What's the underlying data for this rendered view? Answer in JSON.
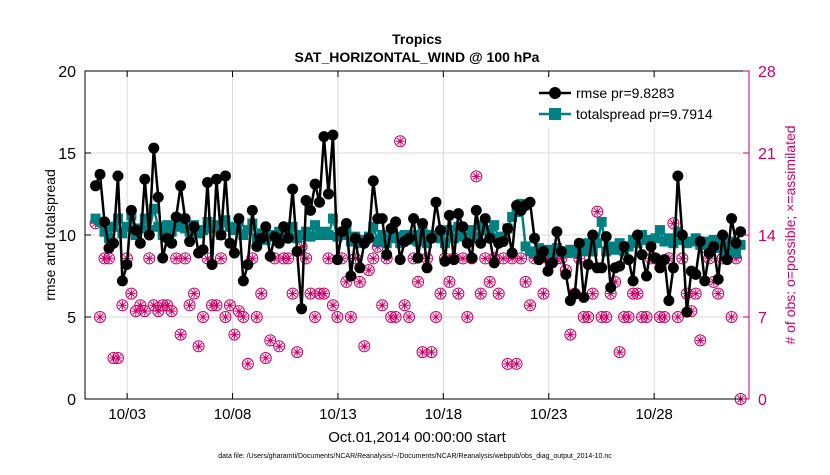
{
  "chart_data": {
    "type": "line",
    "title": "Tropics",
    "subtitle": "SAT_HORIZONTAL_WIND @ 100 hPa",
    "xlabel": "Oct.01,2014 00:00:00 start",
    "ylabel": "rmse and totalspread",
    "ylabel_right": "# of obs: o=possible; ×=assimilated",
    "xlim": [
      1,
      32.5
    ],
    "ylim": [
      0,
      20
    ],
    "ylim_right": [
      0,
      28
    ],
    "x_ticks": [
      3,
      8,
      13,
      18,
      23,
      28
    ],
    "x_tick_labels": [
      "10/03",
      "10/08",
      "10/13",
      "10/18",
      "10/23",
      "10/28"
    ],
    "y_ticks": [
      0,
      5,
      10,
      15,
      20
    ],
    "y_ticks_right": [
      0,
      7,
      14,
      21,
      28
    ],
    "colors": {
      "rmse": "#000000",
      "totalspread": "#008080",
      "obs": "#cc0066",
      "axes": "#000000",
      "grid": "#d9d9d9"
    },
    "legend_position": "top-right",
    "series": [
      {
        "name": "rmse pr=9.8283",
        "values": [
          13.0,
          13.7,
          10.8,
          9.2,
          9.5,
          13.6,
          7.2,
          8.2,
          11.5,
          10.3,
          9.5,
          13.4,
          10.0,
          15.3,
          12.3,
          8.6,
          9.8,
          9.5,
          11.1,
          13.0,
          11.0,
          9.6,
          10.5,
          8.9,
          9.1,
          13.2,
          8.2,
          13.4,
          10.0,
          13.6,
          9.5,
          8.9,
          11.0,
          7.2,
          8.2,
          11.5,
          9.3,
          9.8,
          10.5,
          8.7,
          9.9,
          9.5,
          10.5,
          9.8,
          12.8,
          9.0,
          5.5,
          12.1,
          11.5,
          13.1,
          12.0,
          16.0,
          12.5,
          16.1,
          8.5,
          10.2,
          10.7,
          7.5,
          9.8,
          8.0,
          9.5,
          9.8,
          13.3,
          11.0,
          11.0,
          8.8,
          10.4,
          10.8,
          8.5,
          9.6,
          9.8,
          11.0,
          8.6,
          10.7,
          8.0,
          9.8,
          12.0,
          10.3,
          8.4,
          11.2,
          8.5,
          11.3,
          10.5,
          9.5,
          8.6,
          11.5,
          9.5,
          11.0,
          9.8,
          8.3,
          9.5,
          9.6,
          10.4,
          8.9,
          11.8,
          11.5,
          11.8,
          12.0,
          9.8,
          8.5,
          9.0,
          7.8,
          8.3,
          10.2,
          9.0,
          7.6,
          6.0,
          6.4,
          9.5,
          6.2,
          8.2,
          10.0,
          8.0,
          8.0,
          9.9,
          6.8,
          8.0,
          8.1,
          9.3,
          8.5,
          7.2,
          10.0,
          8.8,
          7.5,
          9.3,
          8.6,
          8.0,
          8.5,
          6.0,
          8.0,
          13.6,
          10.0,
          5.3,
          7.8,
          7.6,
          9.6,
          7.2,
          8.9,
          9.3,
          7.3,
          10.0,
          8.5,
          11.0,
          9.5,
          10.2
        ]
      },
      {
        "name": "totalspread pr=9.7914",
        "values": [
          11.0,
          10.8,
          10.2,
          9.8,
          10.5,
          11.0,
          10.1,
          10.5,
          11.2,
          10.0,
          10.4,
          11.0,
          10.3,
          11.6,
          10.5,
          10.0,
          10.6,
          10.2,
          10.5,
          11.0,
          10.4,
          10.2,
          10.6,
          10.1,
          10.3,
          10.8,
          10.4,
          10.6,
          10.0,
          10.9,
          10.5,
          10.3,
          10.8,
          10.0,
          10.3,
          10.7,
          9.8,
          10.1,
          9.7,
          10.0,
          9.9,
          10.2,
          9.8,
          10.0,
          10.5,
          9.8,
          10.0,
          10.2,
          9.9,
          10.6,
          10.0,
          10.2,
          10.0,
          11.0,
          9.9,
          10.0,
          10.3,
          9.6,
          9.9,
          9.5,
          9.7,
          9.9,
          10.5,
          9.6,
          10.0,
          9.5,
          9.8,
          9.9,
          9.5,
          10.0,
          9.7,
          10.0,
          9.6,
          10.2,
          9.5,
          10.0,
          10.0,
          9.8,
          9.5,
          10.3,
          9.8,
          10.5,
          9.9,
          9.7,
          10.3,
          9.8,
          10.6,
          10.3,
          10.2,
          10.6,
          9.8,
          9.9,
          10.4,
          11.1,
          11.4,
          11.9,
          9.3,
          9.0,
          8.9,
          9.2,
          9.0,
          9.1,
          8.9,
          9.2,
          9.0,
          8.9,
          9.1,
          8.9,
          9.2,
          9.0,
          9.5,
          9.0,
          9.5,
          10.8,
          9.0,
          9.3,
          9.1,
          9.5,
          9.0,
          9.3,
          9.7,
          9.5,
          10.0,
          9.7,
          9.5,
          9.8,
          10.3,
          9.6,
          9.8,
          9.5,
          10.2,
          9.7,
          9.5,
          9.6,
          9.8,
          9.4,
          9.6,
          9.1,
          9.7,
          9.2,
          9.5,
          9.0,
          9.6,
          8.9,
          9.4
        ]
      },
      {
        "name": "obs_possible",
        "axis": "right",
        "marker": "o",
        "values": [
          15.0,
          7.0,
          12.0,
          12.0,
          3.5,
          3.5,
          8.0,
          12.0,
          9.0,
          7.5,
          8.0,
          7.5,
          12.0,
          8.0,
          7.5,
          8.0,
          8.0,
          7.5,
          12.0,
          5.5,
          12.0,
          8.0,
          9.0,
          4.5,
          7.0,
          12.0,
          8.0,
          8.0,
          12.0,
          7.0,
          8.0,
          5.5,
          7.5,
          7.0,
          3.0,
          12.0,
          7.0,
          9.0,
          3.5,
          5.0,
          12.0,
          4.5,
          12.0,
          12.0,
          9.0,
          4.0,
          13.0,
          12.0,
          9.0,
          7.0,
          9.0,
          9.0,
          12.0,
          8.0,
          7.0,
          12.0,
          10.0,
          7.0,
          12.0,
          10.0,
          4.5,
          11.0,
          12.0,
          13.0,
          8.0,
          12.0,
          7.0,
          7.0,
          22.0,
          8.0,
          7.0,
          12.0,
          10.0,
          4.0,
          12.0,
          4.0,
          7.0,
          9.0,
          12.0,
          10.0,
          12.0,
          9.0,
          12.0,
          7.0,
          12.0,
          19.0,
          9.0,
          12.0,
          10.0,
          12.0,
          9.0,
          12.0,
          3.0,
          12.0,
          3.0,
          12.0,
          10.0,
          8.0,
          12.0,
          12.0,
          9.0,
          12.0,
          12.0,
          12.0,
          12.0,
          11.0,
          5.5,
          9.0,
          12.0,
          7.0,
          7.0,
          9.0,
          16.0,
          7.0,
          7.0,
          9.0,
          10.0,
          4.0,
          7.0,
          7.0,
          9.0,
          9.0,
          7.0,
          7.0,
          12.0,
          12.0,
          7.0,
          7.0,
          12.0,
          15.0,
          7.0,
          12.0,
          9.0,
          7.5,
          9.0,
          5.0,
          13.0,
          12.0,
          10.0,
          9.0,
          12.0,
          12.0,
          7.0,
          12.0,
          0.0
        ]
      }
    ]
  },
  "footer": {
    "data_file": "data file: /Users/gharamti/Documents/NCAR/Reanalysis/~/Documents/NCAR/Reanalysis/webpub/obs_diag_output_2014-10.nc"
  }
}
